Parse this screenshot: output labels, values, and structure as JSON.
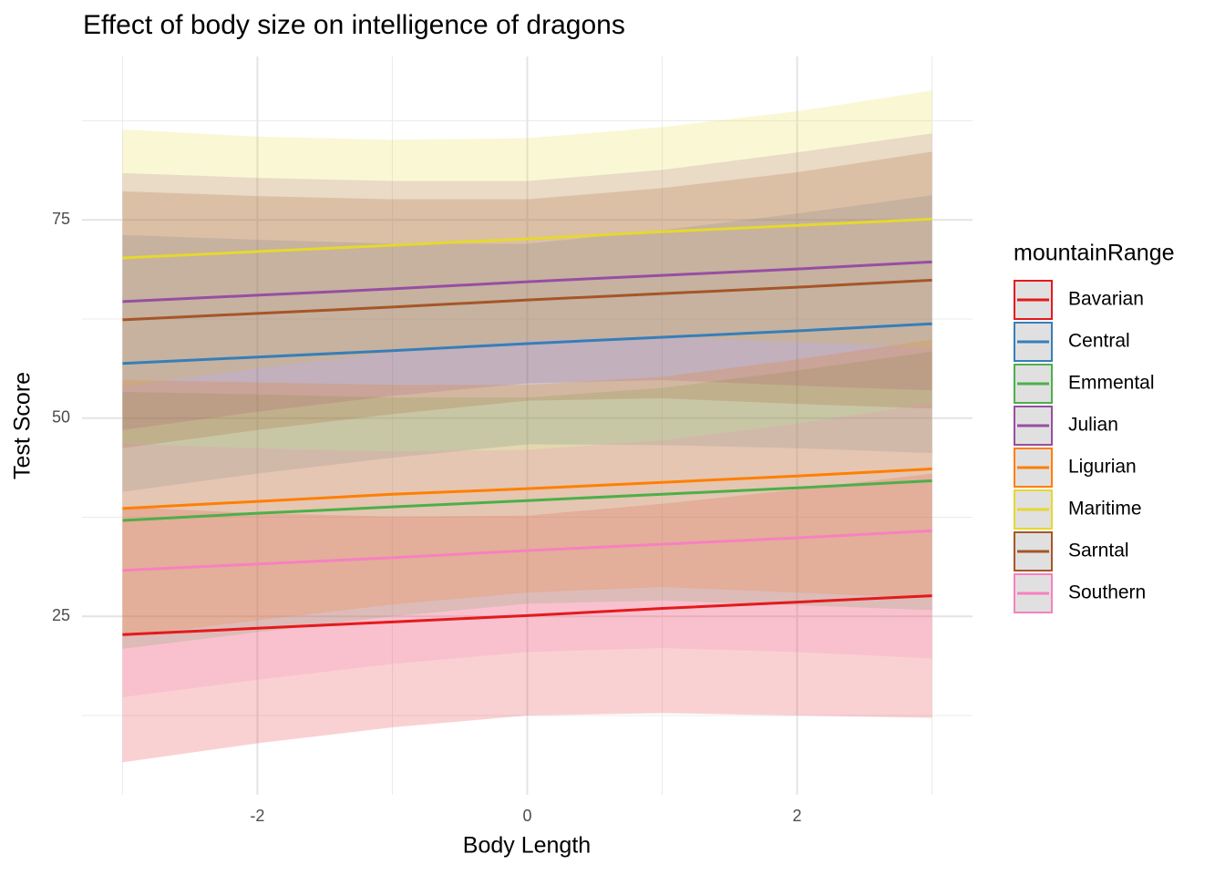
{
  "chart_data": {
    "type": "ribbon-line",
    "title": "Effect of body size on intelligence of dragons",
    "x_label": "Body Length",
    "y_label": "Test Score",
    "legend_title": "mountainRange",
    "legend_position": "right",
    "x": [
      -3,
      -2,
      -1,
      0,
      1,
      2,
      3
    ],
    "xlim": [
      -3.3,
      3.3
    ],
    "xticks": [
      -2,
      0,
      2
    ],
    "x_minor_ticks": [
      -3,
      -1,
      1,
      3
    ],
    "ylim": [
      2.5,
      95.6
    ],
    "yticks": [
      25,
      50,
      75
    ],
    "y_minor_ticks": [
      12.5,
      37.5,
      62.5,
      87.5
    ],
    "grid": true,
    "ribbon_opacity": 0.2,
    "series": [
      {
        "name": "Bavarian",
        "color": "#e41a1c",
        "values": [
          22.7,
          23.5,
          24.3,
          25.1,
          26.0,
          26.8,
          27.6
        ],
        "lower": [
          6.6,
          9.0,
          11.0,
          12.5,
          12.8,
          12.5,
          12.2
        ],
        "upper": [
          38.8,
          38.0,
          37.6,
          37.7,
          39.2,
          41.0,
          43.0
        ]
      },
      {
        "name": "Central",
        "color": "#377eb8",
        "values": [
          56.9,
          57.7,
          58.5,
          59.4,
          60.2,
          61.0,
          61.9
        ],
        "lower": [
          40.7,
          43.0,
          45.0,
          46.7,
          46.6,
          46.2,
          45.6
        ],
        "upper": [
          73.1,
          72.5,
          72.0,
          72.0,
          73.7,
          75.8,
          78.1
        ]
      },
      {
        "name": "Emmental",
        "color": "#4daf4a",
        "values": [
          37.1,
          38.0,
          38.8,
          39.6,
          40.4,
          41.2,
          42.1
        ],
        "lower": [
          20.9,
          23.0,
          25.0,
          26.6,
          27.0,
          26.4,
          25.8
        ],
        "upper": [
          53.3,
          53.0,
          52.6,
          52.6,
          53.8,
          56.0,
          58.4
        ]
      },
      {
        "name": "Julian",
        "color": "#984ea3",
        "values": [
          64.7,
          65.5,
          66.3,
          67.2,
          68.0,
          68.8,
          69.7
        ],
        "lower": [
          48.5,
          50.8,
          52.8,
          54.4,
          54.8,
          54.1,
          53.5
        ],
        "upper": [
          80.9,
          80.3,
          79.9,
          79.9,
          81.3,
          83.5,
          85.9
        ]
      },
      {
        "name": "Ligurian",
        "color": "#ff7f00",
        "values": [
          38.6,
          39.5,
          40.4,
          41.1,
          41.9,
          42.7,
          43.6
        ],
        "lower": [
          22.4,
          24.5,
          26.5,
          28.0,
          28.7,
          28.0,
          27.3
        ],
        "upper": [
          54.8,
          54.5,
          54.2,
          54.2,
          55.2,
          57.4,
          59.9
        ]
      },
      {
        "name": "Maritime",
        "color": "#e6d82e",
        "values": [
          70.2,
          71.0,
          71.8,
          72.6,
          73.5,
          74.3,
          75.1
        ],
        "lower": [
          54.0,
          56.3,
          58.3,
          59.8,
          60.3,
          59.6,
          58.9
        ],
        "upper": [
          86.4,
          85.5,
          85.1,
          85.3,
          86.7,
          88.7,
          91.3
        ]
      },
      {
        "name": "Sarntal",
        "color": "#a65628",
        "values": [
          62.4,
          63.2,
          64.0,
          64.9,
          65.7,
          66.5,
          67.4
        ],
        "lower": [
          46.2,
          48.5,
          50.5,
          52.2,
          52.5,
          51.8,
          51.2
        ],
        "upper": [
          78.6,
          78.0,
          77.6,
          77.6,
          79.0,
          81.0,
          83.6
        ]
      },
      {
        "name": "Southern",
        "color": "#f781bf",
        "values": [
          30.8,
          31.6,
          32.4,
          33.3,
          34.1,
          34.9,
          35.8
        ],
        "lower": [
          14.8,
          17.0,
          19.0,
          20.5,
          21.0,
          20.5,
          19.7
        ],
        "upper": [
          46.8,
          46.2,
          45.8,
          46.0,
          47.2,
          49.3,
          51.9
        ]
      }
    ]
  }
}
